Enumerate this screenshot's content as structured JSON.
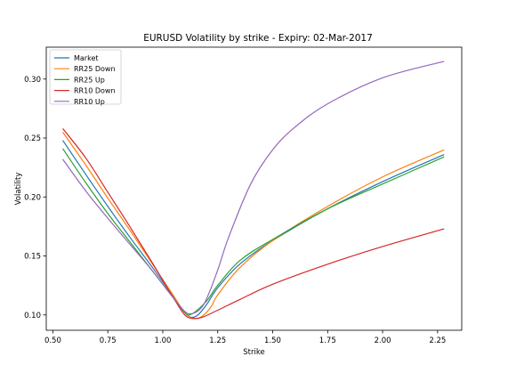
{
  "chart_data": {
    "type": "line",
    "title": "EURUSD  Volatility by strike - Expiry: 02-Mar-2017",
    "xlabel": "Strike",
    "ylabel": "Volatility",
    "xlim": [
      0.47,
      2.36
    ],
    "ylim": [
      0.087,
      0.327
    ],
    "xticks": [
      0.5,
      0.75,
      1.0,
      1.25,
      1.5,
      1.75,
      2.0,
      2.25
    ],
    "xtick_labels": [
      "0.50",
      "0.75",
      "1.00",
      "1.25",
      "1.50",
      "1.75",
      "2.00",
      "2.25"
    ],
    "yticks": [
      0.1,
      0.15,
      0.2,
      0.25,
      0.3
    ],
    "ytick_labels": [
      "0.10",
      "0.15",
      "0.20",
      "0.25",
      "0.30"
    ],
    "grid": false,
    "legend": "top-left",
    "series": [
      {
        "name": "Market",
        "color": "#1f77b4",
        "x": [
          0.545,
          0.65,
          0.75,
          0.85,
          0.95,
          1.05,
          1.1,
          1.13,
          1.16,
          1.2,
          1.25,
          1.35,
          1.5,
          1.75,
          2.0,
          2.28
        ],
        "y": [
          0.248,
          0.219,
          0.192,
          0.166,
          0.141,
          0.115,
          0.102,
          0.098,
          0.1,
          0.109,
          0.123,
          0.143,
          0.163,
          0.19,
          0.213,
          0.236
        ]
      },
      {
        "name": "RR25 Down",
        "color": "#ff7f0e",
        "x": [
          0.545,
          0.65,
          0.75,
          0.85,
          0.95,
          1.05,
          1.1,
          1.14,
          1.18,
          1.22,
          1.25,
          1.35,
          1.5,
          1.75,
          2.0,
          2.28
        ],
        "y": [
          0.255,
          0.227,
          0.199,
          0.172,
          0.144,
          0.116,
          0.102,
          0.097,
          0.099,
          0.107,
          0.117,
          0.14,
          0.163,
          0.192,
          0.217,
          0.24
        ]
      },
      {
        "name": "RR25 Up",
        "color": "#2ca02c",
        "x": [
          0.545,
          0.65,
          0.75,
          0.85,
          0.95,
          1.05,
          1.1,
          1.12,
          1.15,
          1.2,
          1.25,
          1.35,
          1.5,
          1.75,
          2.0,
          2.28
        ],
        "y": [
          0.241,
          0.212,
          0.186,
          0.162,
          0.138,
          0.114,
          0.102,
          0.1,
          0.103,
          0.112,
          0.125,
          0.146,
          0.164,
          0.19,
          0.211,
          0.234
        ]
      },
      {
        "name": "RR10 Down",
        "color": "#d62728",
        "x": [
          0.545,
          0.65,
          0.75,
          0.85,
          0.95,
          1.05,
          1.1,
          1.14,
          1.18,
          1.25,
          1.35,
          1.5,
          1.75,
          2.0,
          2.28
        ],
        "y": [
          0.258,
          0.233,
          0.204,
          0.175,
          0.145,
          0.114,
          0.1,
          0.097,
          0.098,
          0.104,
          0.113,
          0.126,
          0.143,
          0.158,
          0.173
        ]
      },
      {
        "name": "RR10 Up",
        "color": "#9467bd",
        "x": [
          0.545,
          0.65,
          0.75,
          0.85,
          0.95,
          1.05,
          1.1,
          1.13,
          1.17,
          1.2,
          1.25,
          1.3,
          1.4,
          1.5,
          1.6,
          1.75,
          2.0,
          2.28
        ],
        "y": [
          0.232,
          0.205,
          0.182,
          0.16,
          0.138,
          0.114,
          0.103,
          0.101,
          0.105,
          0.114,
          0.138,
          0.166,
          0.211,
          0.24,
          0.259,
          0.279,
          0.301,
          0.315
        ]
      }
    ]
  }
}
